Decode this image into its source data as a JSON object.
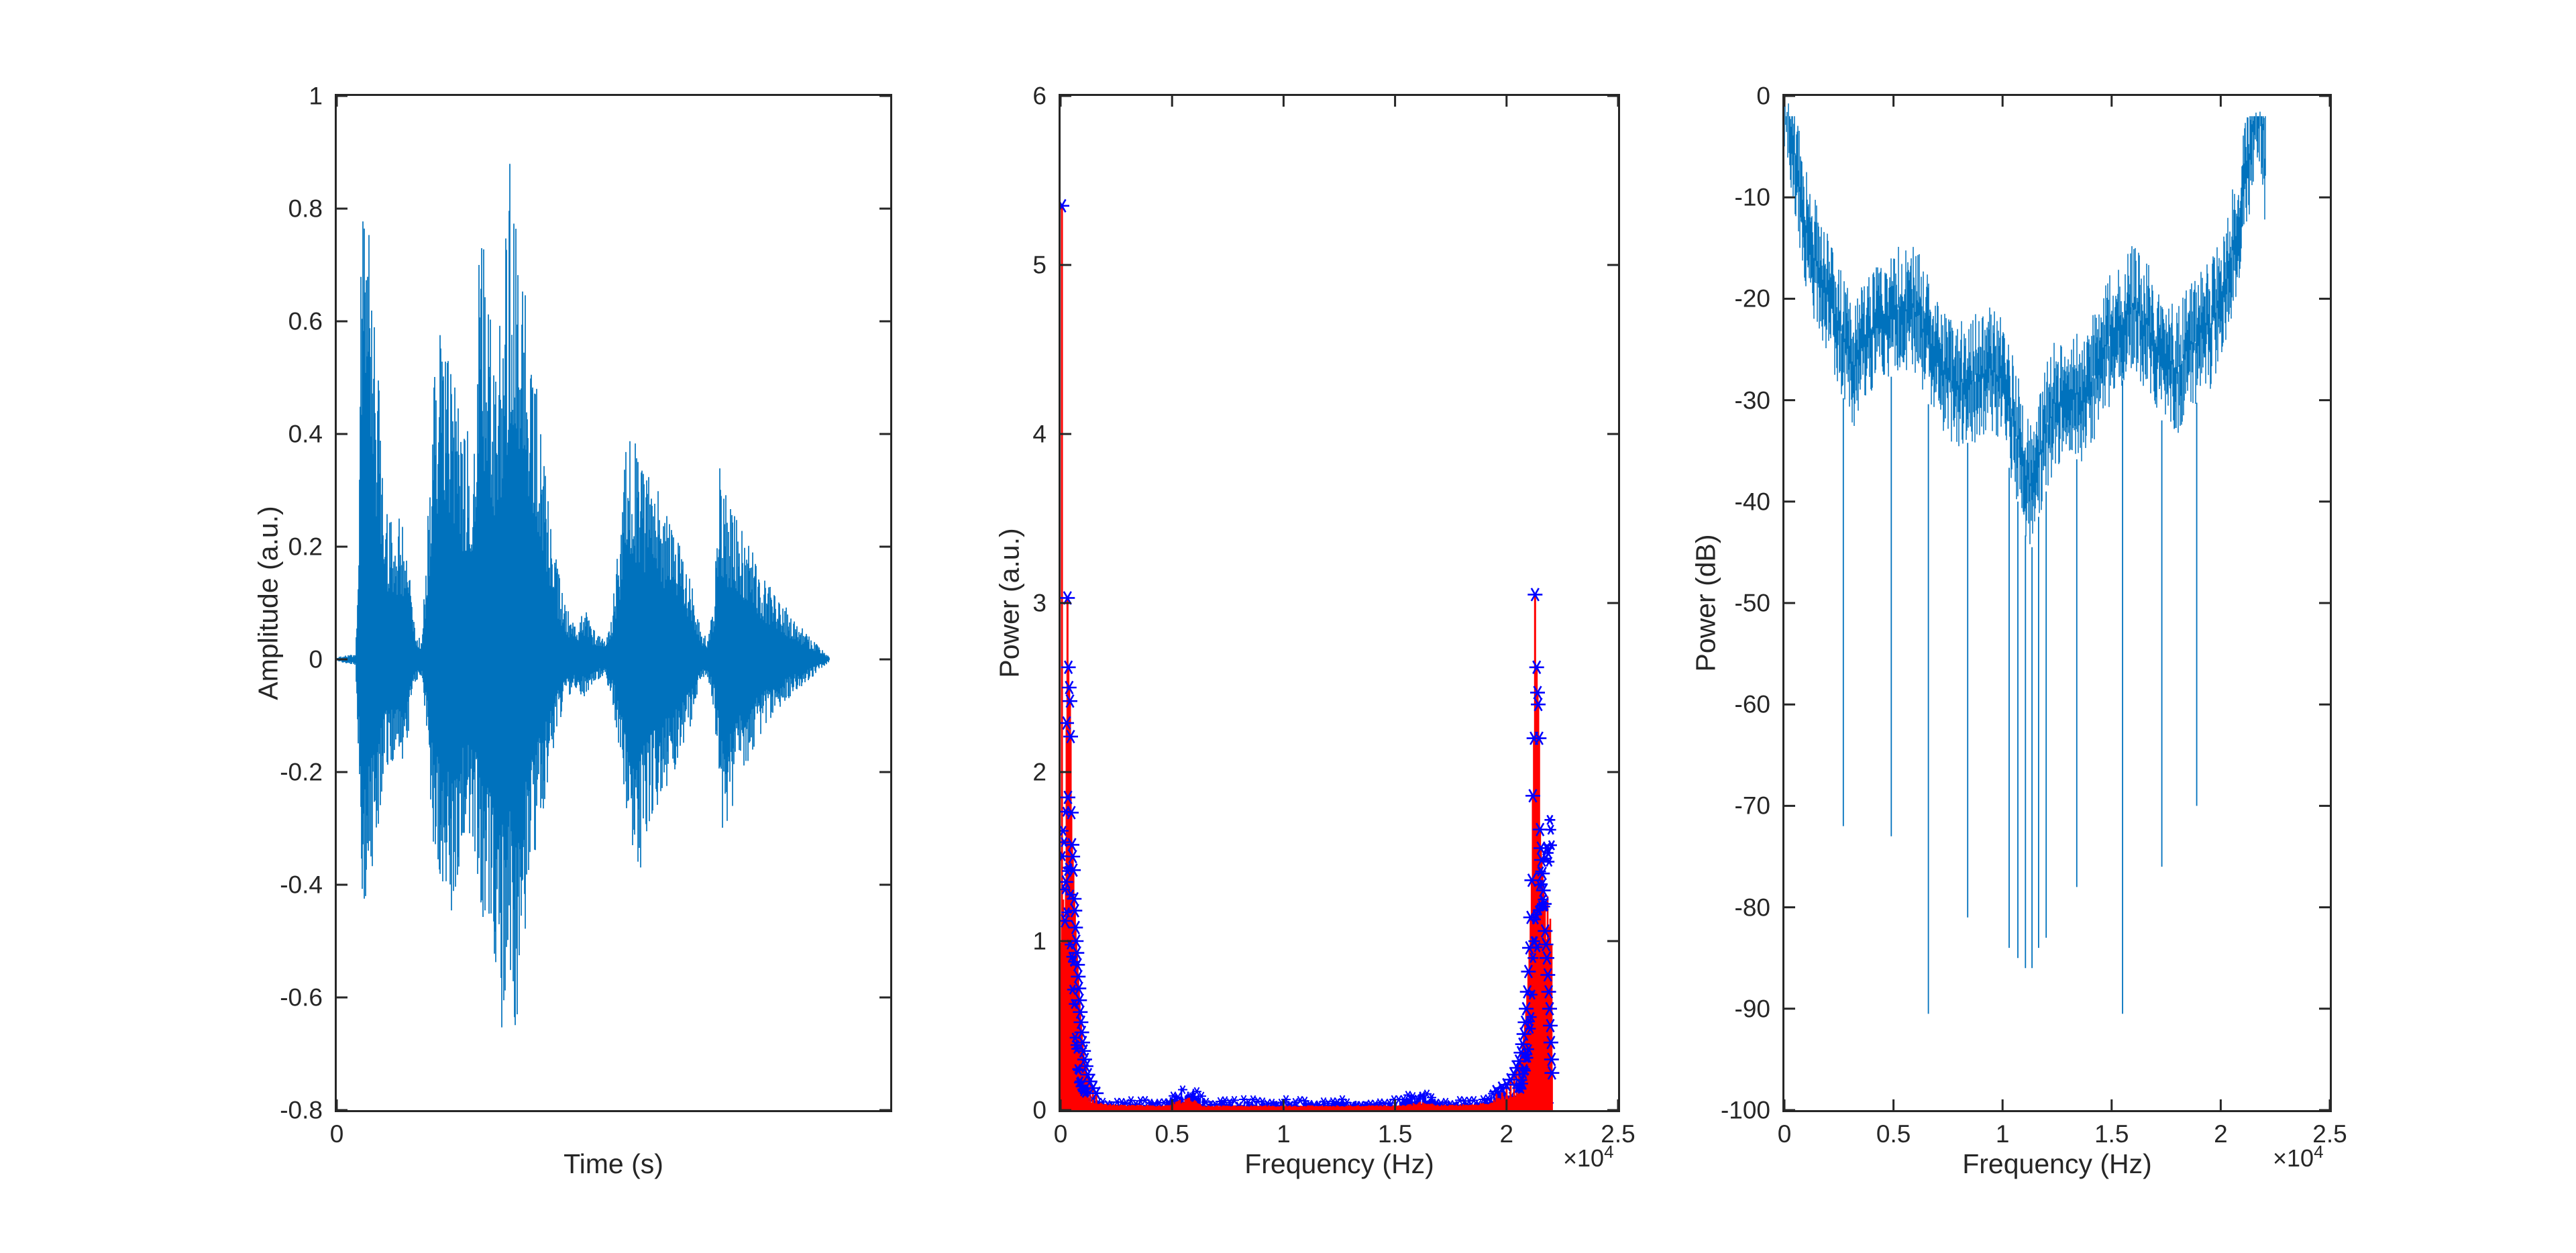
{
  "figure": {
    "background": "#ffffff",
    "axis_color": "#262626",
    "text_color": "#262626",
    "matlab_blue": "#0072BD"
  },
  "chart_data": [
    {
      "id": "time_waveform",
      "type": "line",
      "title": "",
      "xlabel": "Time (s)",
      "ylabel": "Amplitude (a.u.)",
      "xlim": [
        0,
        1
      ],
      "ylim": [
        -0.8,
        1
      ],
      "xticks": [
        0
      ],
      "xtick_labels": [
        "0"
      ],
      "yticks": [
        1,
        0.8,
        0.6,
        0.4,
        0.2,
        0,
        -0.2,
        -0.4,
        -0.6,
        -0.8
      ],
      "ytick_labels": [
        "1",
        "0.8",
        "0.6",
        "0.4",
        "0.2",
        "0",
        "-0.2",
        "-0.4",
        "-0.6",
        "-0.8"
      ],
      "grid": false,
      "line_color": "#0072BD",
      "data_end_fraction": 0.89,
      "envelope_t_up_down": [
        [
          0,
          0.004,
          0.004
        ],
        [
          0.034,
          0.01,
          0.01
        ],
        [
          0.04,
          0.25,
          0.2
        ],
        [
          0.046,
          0.98,
          0.47
        ],
        [
          0.052,
          0.9,
          0.45
        ],
        [
          0.06,
          0.74,
          0.4
        ],
        [
          0.068,
          0.62,
          0.35
        ],
        [
          0.078,
          0.45,
          0.28
        ],
        [
          0.088,
          0.28,
          0.2
        ],
        [
          0.1,
          0.24,
          0.18
        ],
        [
          0.115,
          0.26,
          0.2
        ],
        [
          0.13,
          0.17,
          0.13
        ],
        [
          0.142,
          0.05,
          0.04
        ],
        [
          0.153,
          0.035,
          0.03
        ],
        [
          0.163,
          0.2,
          0.15
        ],
        [
          0.173,
          0.5,
          0.32
        ],
        [
          0.186,
          0.61,
          0.38
        ],
        [
          0.198,
          0.56,
          0.42
        ],
        [
          0.21,
          0.5,
          0.46
        ],
        [
          0.222,
          0.44,
          0.36
        ],
        [
          0.234,
          0.4,
          0.3
        ],
        [
          0.247,
          0.43,
          0.33
        ],
        [
          0.258,
          0.76,
          0.42
        ],
        [
          0.268,
          0.73,
          0.48
        ],
        [
          0.278,
          0.6,
          0.52
        ],
        [
          0.288,
          0.55,
          0.6
        ],
        [
          0.298,
          0.63,
          0.66
        ],
        [
          0.308,
          0.8,
          0.6
        ],
        [
          0.316,
          0.94,
          0.56
        ],
        [
          0.324,
          0.86,
          0.68
        ],
        [
          0.333,
          0.78,
          0.58
        ],
        [
          0.343,
          0.68,
          0.46
        ],
        [
          0.355,
          0.55,
          0.37
        ],
        [
          0.368,
          0.42,
          0.3
        ],
        [
          0.382,
          0.3,
          0.22
        ],
        [
          0.396,
          0.18,
          0.13
        ],
        [
          0.412,
          0.1,
          0.08
        ],
        [
          0.43,
          0.06,
          0.05
        ],
        [
          0.448,
          0.09,
          0.07
        ],
        [
          0.466,
          0.05,
          0.04
        ],
        [
          0.483,
          0.035,
          0.03
        ],
        [
          0.498,
          0.09,
          0.07
        ],
        [
          0.512,
          0.24,
          0.18
        ],
        [
          0.524,
          0.42,
          0.28
        ],
        [
          0.536,
          0.4,
          0.34
        ],
        [
          0.548,
          0.35,
          0.38
        ],
        [
          0.562,
          0.33,
          0.3
        ],
        [
          0.58,
          0.3,
          0.26
        ],
        [
          0.6,
          0.26,
          0.22
        ],
        [
          0.622,
          0.2,
          0.17
        ],
        [
          0.642,
          0.13,
          0.11
        ],
        [
          0.658,
          0.05,
          0.04
        ],
        [
          0.67,
          0.04,
          0.035
        ],
        [
          0.682,
          0.12,
          0.09
        ],
        [
          0.692,
          0.35,
          0.26
        ],
        [
          0.7,
          0.3,
          0.38
        ],
        [
          0.712,
          0.27,
          0.28
        ],
        [
          0.724,
          0.25,
          0.23
        ],
        [
          0.74,
          0.22,
          0.19
        ],
        [
          0.757,
          0.18,
          0.15
        ],
        [
          0.776,
          0.14,
          0.12
        ],
        [
          0.8,
          0.11,
          0.09
        ],
        [
          0.824,
          0.075,
          0.06
        ],
        [
          0.85,
          0.045,
          0.04
        ],
        [
          0.872,
          0.022,
          0.02
        ],
        [
          0.888,
          0.006,
          0.006
        ],
        [
          0.89,
          0.003,
          0.003
        ]
      ]
    },
    {
      "id": "power_spectrum",
      "type": "stem",
      "title": "",
      "xlabel": "Frequency (Hz)",
      "ylabel": "Power (a.u.)",
      "x_exponent": {
        "prefix": "×10",
        "exp": "4"
      },
      "xlim": [
        0,
        25000
      ],
      "ylim": [
        0,
        6
      ],
      "xticks": [
        0,
        5000,
        10000,
        15000,
        20000,
        25000
      ],
      "xtick_labels": [
        "0",
        "0.5",
        "1",
        "1.5",
        "2",
        "2.5"
      ],
      "yticks": [
        0,
        1,
        2,
        3,
        4,
        5,
        6
      ],
      "ytick_labels": [
        "0",
        "1",
        "2",
        "3",
        "4",
        "5",
        "6"
      ],
      "grid": false,
      "stem_color": "#FF0000",
      "marker_color": "#0000FF",
      "max_frequency_hz": 22050,
      "base_envelope_g_v": [
        [
          0,
          1.2
        ],
        [
          100,
          1.35
        ],
        [
          250,
          1.28
        ],
        [
          400,
          1.05
        ],
        [
          500,
          0.85
        ],
        [
          600,
          0.55
        ],
        [
          700,
          0.3
        ],
        [
          800,
          0.17
        ],
        [
          900,
          0.1
        ],
        [
          1100,
          0.065
        ],
        [
          1500,
          0.05
        ],
        [
          2500,
          0.035
        ],
        [
          4000,
          0.03
        ],
        [
          7000,
          0.028
        ],
        [
          11025,
          0.028
        ]
      ],
      "right_block_width_scale": 1.55,
      "blue_noise_bumps_f0_f1_h": [
        [
          4600,
          6600,
          0.09
        ],
        [
          15200,
          17000,
          0.07
        ],
        [
          18800,
          20600,
          0.1
        ]
      ],
      "red_noise_bumps_f0_f1_h": [
        [
          4800,
          6400,
          0.05
        ],
        [
          15500,
          16800,
          0.025
        ],
        [
          19200,
          20600,
          0.05
        ]
      ],
      "peak_stems_f_v": [
        [
          60,
          5.35
        ],
        [
          200,
          1.12
        ],
        [
          240,
          1.35
        ],
        [
          270,
          2.29
        ],
        [
          310,
          3.03
        ],
        [
          330,
          1.85
        ],
        [
          350,
          2.62
        ],
        [
          385,
          2.5
        ],
        [
          420,
          2.42
        ],
        [
          450,
          2.21
        ],
        [
          480,
          1.76
        ],
        [
          510,
          1.57
        ],
        [
          545,
          1.5
        ],
        [
          575,
          1.42
        ],
        [
          610,
          1.25
        ],
        [
          640,
          1.18
        ],
        [
          670,
          1.08
        ],
        [
          700,
          1.0
        ],
        [
          730,
          0.93
        ],
        [
          760,
          0.86
        ],
        [
          790,
          0.79
        ],
        [
          820,
          0.72
        ],
        [
          850,
          0.65
        ],
        [
          880,
          0.58
        ],
        [
          915,
          0.52
        ],
        [
          950,
          0.46
        ],
        [
          990,
          0.4
        ],
        [
          1030,
          0.35
        ],
        [
          1080,
          0.3
        ],
        [
          1140,
          0.26
        ],
        [
          1220,
          0.21
        ],
        [
          1320,
          0.17
        ],
        [
          1450,
          0.13
        ],
        [
          1600,
          0.1
        ],
        [
          21280,
          3.05
        ],
        [
          21350,
          2.62
        ],
        [
          21390,
          2.47
        ],
        [
          21420,
          2.4
        ],
        [
          21230,
          2.2
        ],
        [
          21460,
          2.2
        ],
        [
          21180,
          1.86
        ],
        [
          21500,
          1.66
        ],
        [
          21540,
          1.55
        ],
        [
          21570,
          1.48
        ],
        [
          21610,
          1.4
        ],
        [
          21130,
          1.36
        ],
        [
          21650,
          1.3
        ],
        [
          21690,
          1.22
        ],
        [
          21080,
          1.14
        ],
        [
          21730,
          1.06
        ],
        [
          21770,
          0.98
        ],
        [
          21810,
          0.9
        ],
        [
          21850,
          0.8
        ],
        [
          21890,
          0.7
        ],
        [
          21930,
          0.6
        ],
        [
          21960,
          0.5
        ],
        [
          21990,
          0.4
        ],
        [
          22015,
          0.3
        ],
        [
          22035,
          0.22
        ],
        [
          21030,
          0.96
        ],
        [
          20980,
          0.82
        ],
        [
          20930,
          0.7
        ],
        [
          20880,
          0.6
        ],
        [
          20830,
          0.52
        ],
        [
          20780,
          0.45
        ],
        [
          20720,
          0.39
        ],
        [
          20650,
          0.34
        ],
        [
          20560,
          0.29
        ],
        [
          20460,
          0.25
        ],
        [
          20340,
          0.21
        ],
        [
          20180,
          0.18
        ],
        [
          20000,
          0.15
        ],
        [
          19800,
          0.13
        ],
        [
          19550,
          0.11
        ]
      ]
    },
    {
      "id": "power_db_spectrum",
      "type": "line",
      "title": "",
      "xlabel": "Frequency (Hz)",
      "ylabel": "Power (dB)",
      "x_exponent": {
        "prefix": "×10",
        "exp": "4"
      },
      "xlim": [
        0,
        25000
      ],
      "ylim": [
        -100,
        0
      ],
      "xticks": [
        0,
        5000,
        10000,
        15000,
        20000,
        25000
      ],
      "xtick_labels": [
        "0",
        "0.5",
        "1",
        "1.5",
        "2",
        "2.5"
      ],
      "yticks": [
        0,
        -10,
        -20,
        -30,
        -40,
        -50,
        -60,
        -70,
        -80,
        -90,
        -100
      ],
      "ytick_labels": [
        "0",
        "-10",
        "-20",
        "-30",
        "-40",
        "-50",
        "-60",
        "-70",
        "-80",
        "-90",
        "-100"
      ],
      "grid": false,
      "line_color": "#0072BD",
      "max_frequency_hz": 22050,
      "envelope_f_top_bot": [
        [
          0,
          -1.5,
          -48
        ],
        [
          150,
          -3,
          -52
        ],
        [
          300,
          -6,
          -56
        ],
        [
          600,
          -10,
          -58
        ],
        [
          1000,
          -16,
          -60
        ],
        [
          1500,
          -20,
          -62
        ],
        [
          2000,
          -23,
          -60
        ],
        [
          2600,
          -26,
          -58
        ],
        [
          3100,
          -30,
          -62
        ],
        [
          3600,
          -28,
          -64
        ],
        [
          4200,
          -26,
          -60
        ],
        [
          5000,
          -24.5,
          -66
        ],
        [
          5700,
          -23.5,
          -63
        ],
        [
          6200,
          -25,
          -68
        ],
        [
          6700,
          -28,
          -70
        ],
        [
          7300,
          -30,
          -68
        ],
        [
          8000,
          -31.5,
          -72
        ],
        [
          8700,
          -31,
          -75
        ],
        [
          9300,
          -30,
          -74
        ],
        [
          9900,
          -31,
          -78
        ],
        [
          10500,
          -35,
          -80
        ],
        [
          11000,
          -40,
          -82
        ],
        [
          11300,
          -42,
          -80
        ],
        [
          11700,
          -38,
          -78
        ],
        [
          12300,
          -34,
          -76
        ],
        [
          12900,
          -32,
          -72
        ],
        [
          13500,
          -33,
          -74
        ],
        [
          14100,
          -31,
          -72
        ],
        [
          14700,
          -28,
          -70
        ],
        [
          15300,
          -25.5,
          -68
        ],
        [
          16000,
          -24,
          -66
        ],
        [
          16700,
          -26,
          -68
        ],
        [
          17300,
          -29,
          -70
        ],
        [
          18000,
          -30,
          -68
        ],
        [
          18600,
          -28,
          -66
        ],
        [
          19200,
          -26.5,
          -64
        ],
        [
          19700,
          -25,
          -62
        ],
        [
          20300,
          -21,
          -60
        ],
        [
          20800,
          -16,
          -56
        ],
        [
          21300,
          -9,
          -54
        ],
        [
          21600,
          -4,
          -52
        ],
        [
          21800,
          -3.5,
          -50
        ],
        [
          21950,
          -6,
          -48
        ],
        [
          22050,
          -11,
          -46
        ]
      ],
      "deep_spikes_f_db": [
        [
          2700,
          -72
        ],
        [
          4900,
          -73
        ],
        [
          6600,
          -90.5
        ],
        [
          8400,
          -81
        ],
        [
          10300,
          -84
        ],
        [
          10700,
          -85
        ],
        [
          11050,
          -86
        ],
        [
          11350,
          -86
        ],
        [
          11650,
          -84
        ],
        [
          12000,
          -83
        ],
        [
          13400,
          -78
        ],
        [
          15500,
          -90.5
        ],
        [
          17300,
          -76
        ],
        [
          18900,
          -70
        ]
      ]
    }
  ]
}
